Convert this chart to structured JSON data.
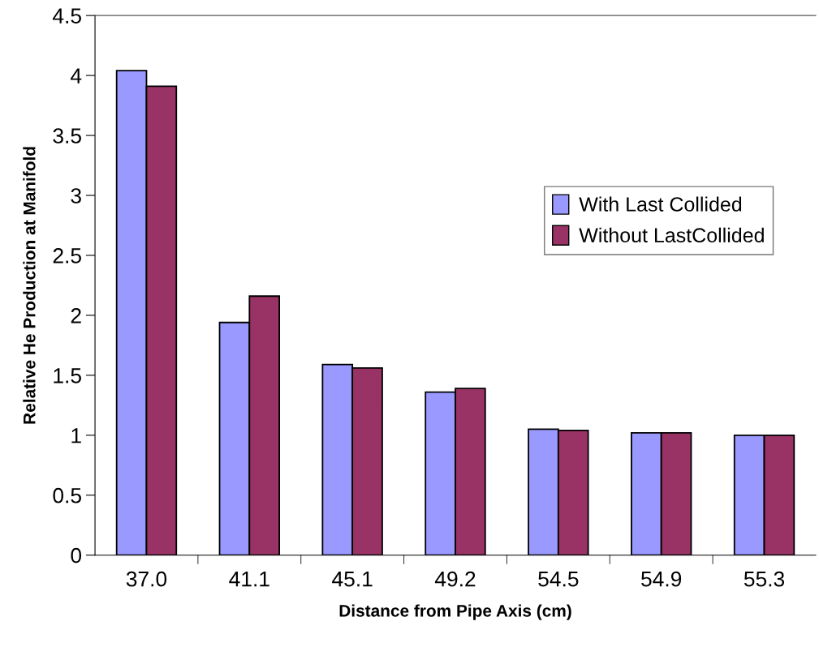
{
  "chart_data": {
    "type": "bar",
    "xlabel": "Distance from Pipe Axis (cm)",
    "ylabel": "Relative He Production at Manifold",
    "categories": [
      "37.0",
      "41.1",
      "45.1",
      "49.2",
      "54.5",
      "54.9",
      "55.3"
    ],
    "series": [
      {
        "name": "With Last Collided",
        "color": "#9999ff",
        "values": [
          4.04,
          1.94,
          1.59,
          1.36,
          1.05,
          1.02,
          1.0
        ]
      },
      {
        "name": "Without LastCollided",
        "color": "#993366",
        "values": [
          3.91,
          2.16,
          1.56,
          1.39,
          1.04,
          1.02,
          1.0
        ]
      }
    ],
    "ylim": [
      0,
      4.5
    ],
    "yticks": [
      0,
      0.5,
      1,
      1.5,
      2,
      2.5,
      3,
      3.5,
      4,
      4.5
    ],
    "grid": false,
    "legend": "right"
  }
}
